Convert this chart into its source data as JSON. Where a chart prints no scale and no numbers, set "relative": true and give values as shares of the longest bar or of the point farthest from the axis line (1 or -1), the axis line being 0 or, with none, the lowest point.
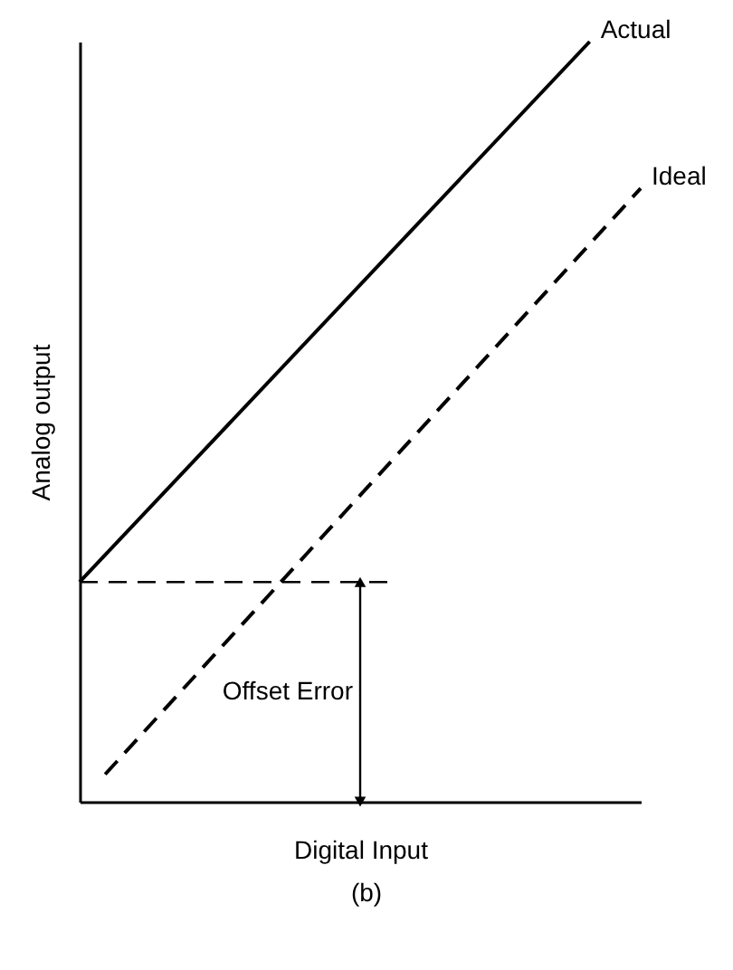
{
  "chart_data": {
    "type": "line",
    "relative": true,
    "xlabel": "Digital Input",
    "ylabel": "Analog output",
    "categories": [
      null,
      null,
      null,
      null,
      null,
      null,
      null,
      null,
      null,
      null,
      null,
      null,
      null,
      null,
      null,
      null,
      null,
      null,
      null,
      null,
      null,
      null,
      null
    ],
    "series": [
      {
        "name": "Actual",
        "color": "#000000",
        "values": [
          0.289,
          null,
          null,
          null,
          null,
          null,
          null,
          null,
          null,
          null,
          null,
          null,
          null,
          null,
          null,
          null,
          null,
          null,
          null,
          null,
          1,
          null,
          null
        ],
        "line_style": "solid"
      },
      {
        "name": "Ideal",
        "color": "#000000",
        "values": [
          null,
          0.036,
          null,
          null,
          null,
          null,
          null,
          null,
          null,
          null,
          null,
          null,
          null,
          null,
          null,
          null,
          null,
          null,
          null,
          null,
          null,
          null,
          0.807
        ],
        "line_style": "dashed"
      }
    ],
    "ref_lines": [
      {
        "axis": "y",
        "value": 0.289,
        "line_style": "dashed",
        "color": "#000000"
      }
    ],
    "annotations": [
      "Offset Error",
      "(b)"
    ]
  }
}
